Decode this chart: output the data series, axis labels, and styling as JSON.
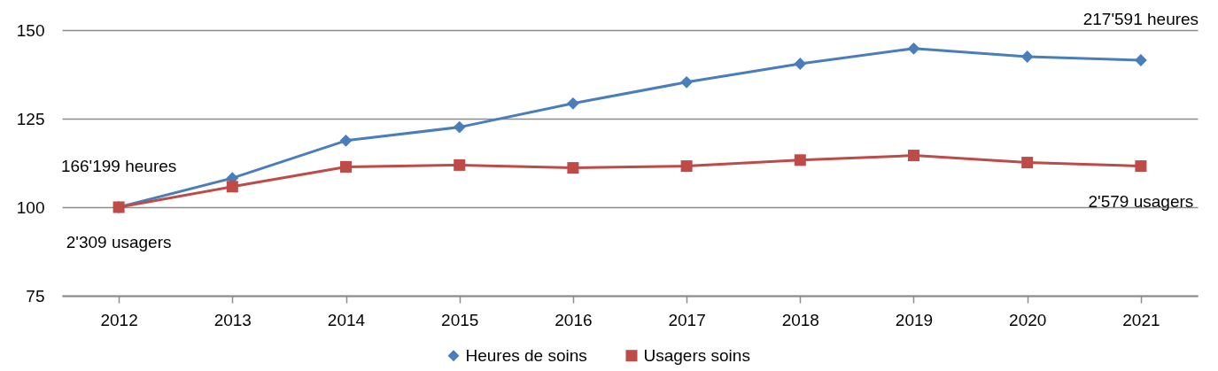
{
  "chart_data": {
    "type": "line",
    "categories": [
      "2012",
      "2013",
      "2014",
      "2015",
      "2016",
      "2017",
      "2018",
      "2019",
      "2020",
      "2021"
    ],
    "series": [
      {
        "name": "Heures de soins",
        "color": "#4a7ebb",
        "marker": "diamond",
        "values": [
          100,
          108.2,
          118.8,
          122.6,
          129.3,
          135.3,
          140.5,
          144.8,
          142.5,
          141.5
        ]
      },
      {
        "name": "Usagers soins",
        "color": "#be4b48",
        "marker": "square",
        "values": [
          100,
          105.8,
          111.4,
          111.9,
          111.1,
          111.6,
          113.3,
          114.6,
          112.6,
          111.6
        ]
      }
    ],
    "ylim": [
      75,
      150
    ],
    "yticks": [
      75,
      100,
      125,
      150
    ],
    "grid": "y",
    "legend": "bottom",
    "line_style": "solid",
    "annotations": [
      {
        "text": "166'199 heures",
        "x": "2012",
        "y": 100
      },
      {
        "text": "2'309 usagers",
        "x": "2012",
        "y": 100
      },
      {
        "text": "217'591 heures",
        "x": "2021",
        "y": 141.5
      },
      {
        "text": "2'579 usagers",
        "x": "2021",
        "y": 111.6
      }
    ]
  }
}
